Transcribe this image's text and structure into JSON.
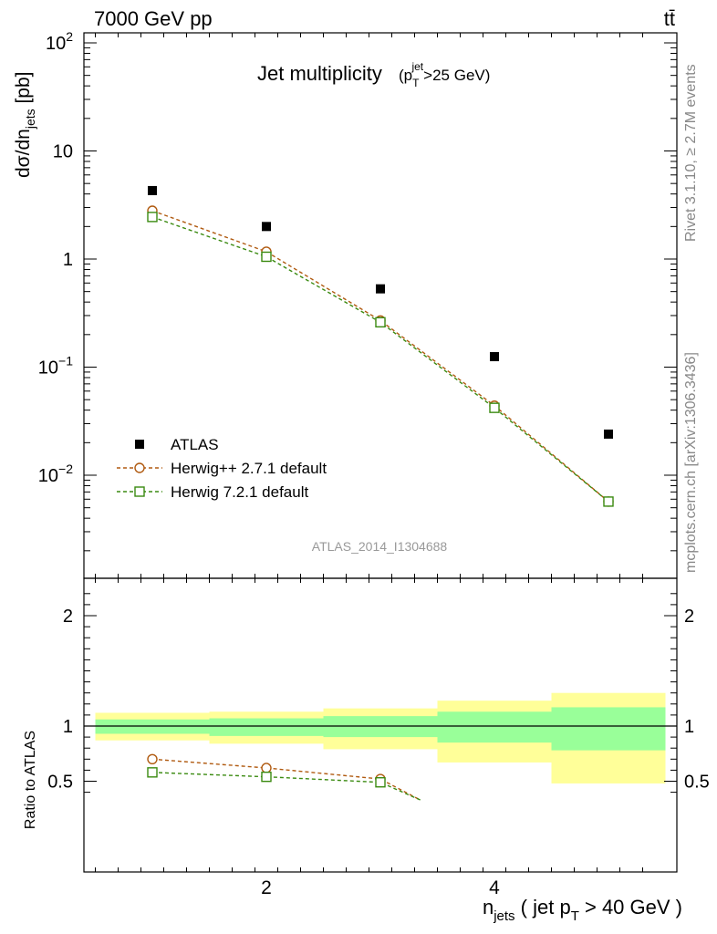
{
  "header": {
    "left": "7000 GeV pp",
    "right": "tt̄"
  },
  "side_texts": {
    "rivet": "Rivet 3.1.10, ≥ 2.7M events",
    "mcplots": "mcplots.cern.ch [arXiv:1306.3436]"
  },
  "chart_data": {
    "type": "scatter",
    "title": "Jet multiplicity",
    "title_note": "(p_T^jet>25 GeV)",
    "analysis_label": "ATLAS_2014_I1304688",
    "x_label": "n_jets ( jet p_T > 40 GeV )",
    "y_label": "dσ/dn_jets [pb]",
    "ratio_y_label": "Ratio to ATLAS",
    "x_range": [
      0.4,
      5.6
    ],
    "y_range_log": [
      0.001,
      120
    ],
    "y_scale": "log",
    "ratio_range": [
      0.33,
      2.4
    ],
    "x_ticks": [
      {
        "v": 2,
        "label": "2"
      },
      {
        "v": 4,
        "label": "4"
      }
    ],
    "y_ticks": [
      {
        "v": 100,
        "mant": "10",
        "exp": "2"
      },
      {
        "v": 10,
        "mant": "10",
        "exp": ""
      },
      {
        "v": 1,
        "mant": "1",
        "exp": ""
      },
      {
        "v": 0.1,
        "mant": "10",
        "exp": "−1"
      },
      {
        "v": 0.01,
        "mant": "10",
        "exp": "−2"
      }
    ],
    "ratio_ticks": [
      {
        "v": 2,
        "label": "2"
      },
      {
        "v": 1,
        "label": "1"
      },
      {
        "v": 0.5,
        "label": "0.5"
      }
    ],
    "legend_position": "lower-left",
    "series": [
      {
        "name": "ATLAS",
        "kind": "data",
        "color": "#000000",
        "x": [
          1,
          2,
          3,
          4,
          5
        ],
        "y": [
          4.3,
          2.0,
          0.53,
          0.125,
          0.024
        ]
      },
      {
        "name": "Herwig++ 2.7.1 default",
        "kind": "mc",
        "marker": "circle",
        "color": "#b05a10",
        "x": [
          1,
          2,
          3,
          4,
          5
        ],
        "y": [
          2.8,
          1.17,
          0.27,
          0.044,
          0.0057
        ]
      },
      {
        "name": "Herwig 7.2.1 default",
        "kind": "mc",
        "marker": "square",
        "color": "#3a8a10",
        "x": [
          1,
          2,
          3,
          4,
          5
        ],
        "y": [
          2.45,
          1.05,
          0.26,
          0.042,
          0.0057
        ]
      }
    ],
    "ratio_series": [
      {
        "name": "Herwig++ 2.7.1 default",
        "x": [
          1,
          2,
          3,
          3.35
        ],
        "y": [
          0.7,
          0.62,
          0.52,
          0.33
        ]
      },
      {
        "name": "Herwig 7.2.1 default",
        "x": [
          1,
          2,
          3,
          3.35
        ],
        "y": [
          0.58,
          0.54,
          0.49,
          0.33
        ]
      }
    ],
    "uncertainty_bands": [
      {
        "x0": 0.5,
        "x1": 1.5,
        "outer": [
          0.87,
          1.12
        ],
        "inner": [
          0.93,
          1.06
        ]
      },
      {
        "x0": 1.5,
        "x1": 2.5,
        "outer": [
          0.84,
          1.13
        ],
        "inner": [
          0.91,
          1.07
        ]
      },
      {
        "x0": 2.5,
        "x1": 3.5,
        "outer": [
          0.79,
          1.16
        ],
        "inner": [
          0.9,
          1.09
        ]
      },
      {
        "x0": 3.5,
        "x1": 4.5,
        "outer": [
          0.67,
          1.23
        ],
        "inner": [
          0.85,
          1.13
        ]
      },
      {
        "x0": 4.5,
        "x1": 5.5,
        "outer": [
          0.48,
          1.3
        ],
        "inner": [
          0.78,
          1.17
        ]
      }
    ],
    "band_colors": {
      "outer": "#ffff99",
      "inner": "#99ff99"
    }
  }
}
